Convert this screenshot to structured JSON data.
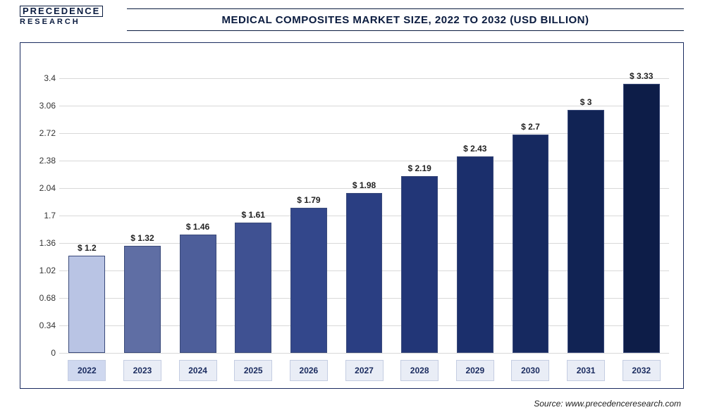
{
  "logo": {
    "line1": "PRECEDENCE",
    "line2": "RESEARCH"
  },
  "title": "MEDICAL COMPOSITES MARKET SIZE, 2022 TO 2032 (USD BILLION)",
  "source": "Source: www.precedenceresearch.com",
  "chart": {
    "type": "bar",
    "categories": [
      "2022",
      "2023",
      "2024",
      "2025",
      "2026",
      "2027",
      "2028",
      "2029",
      "2030",
      "2031",
      "2032"
    ],
    "values": [
      1.2,
      1.32,
      1.46,
      1.61,
      1.79,
      1.98,
      2.19,
      2.43,
      2.7,
      3.0,
      3.33
    ],
    "value_labels": [
      "$ 1.2",
      "$ 1.32",
      "$ 1.46",
      "$ 1.61",
      "$ 1.79",
      "$ 1.98",
      "$ 2.19",
      "$ 2.43",
      "$ 2.7",
      "$ 3",
      "$ 3.33"
    ],
    "bar_colors": [
      "#b9c4e4",
      "#5f6ea4",
      "#4d5e9a",
      "#3f5192",
      "#33478b",
      "#2a3e82",
      "#223677",
      "#1b2f6c",
      "#162960",
      "#112354",
      "#0d1d48"
    ],
    "bar_border": "#3a4a7a",
    "ylim": [
      0,
      3.57
    ],
    "ytick_step": 0.34,
    "ytick_labels": [
      "0",
      "0.34",
      "0.68",
      "1.02",
      "1.36",
      "1.7",
      "2.04",
      "2.38",
      "2.72",
      "3.06",
      "3.4"
    ],
    "grid_color": "#d8d8d8",
    "background_color": "#ffffff",
    "title_fontsize": 15,
    "label_fontsize": 12,
    "xlabel_box_bg": "#e9edf6",
    "xlabel_box_border": "#c4cde2",
    "xlabel_hl_bg": "#cfd8ef",
    "bar_width": 0.66,
    "highlight_index": 0
  }
}
